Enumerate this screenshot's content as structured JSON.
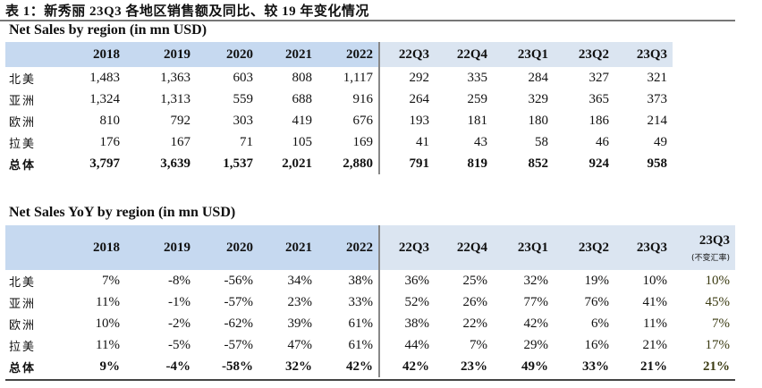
{
  "caption": "表 1：新秀丽 23Q3 各地区销售额及同比、较 19 年变化情况",
  "sales": {
    "title": "Net Sales by region (in mn USD)",
    "headers": [
      "",
      "2018",
      "2019",
      "2020",
      "2021",
      "2022",
      "22Q3",
      "22Q4",
      "23Q1",
      "23Q2",
      "23Q3"
    ],
    "rows": [
      [
        "北美",
        "1,483",
        "1,363",
        "603",
        "808",
        "1,117",
        "292",
        "335",
        "284",
        "327",
        "321"
      ],
      [
        "亚洲",
        "1,324",
        "1,313",
        "559",
        "688",
        "916",
        "264",
        "259",
        "329",
        "365",
        "373"
      ],
      [
        "欧洲",
        "810",
        "792",
        "303",
        "419",
        "676",
        "193",
        "181",
        "180",
        "186",
        "214"
      ],
      [
        "拉美",
        "176",
        "167",
        "71",
        "105",
        "169",
        "41",
        "43",
        "58",
        "46",
        "49"
      ],
      [
        "总体",
        "3,797",
        "3,639",
        "1,537",
        "2,021",
        "2,880",
        "791",
        "819",
        "852",
        "924",
        "958"
      ]
    ]
  },
  "yoy": {
    "title": "Net Sales YoY by region (in mn USD)",
    "headers": [
      "",
      "2018",
      "2019",
      "2020",
      "2021",
      "2022",
      "22Q3",
      "22Q4",
      "23Q1",
      "23Q2",
      "23Q3",
      "23Q3"
    ],
    "fx_note": "(不变汇率)",
    "rows": [
      [
        "北美",
        "7%",
        "-8%",
        "-56%",
        "34%",
        "38%",
        "36%",
        "25%",
        "32%",
        "19%",
        "10%",
        "10%"
      ],
      [
        "亚洲",
        "11%",
        "-1%",
        "-57%",
        "23%",
        "33%",
        "52%",
        "26%",
        "77%",
        "76%",
        "41%",
        "45%"
      ],
      [
        "欧洲",
        "10%",
        "-2%",
        "-62%",
        "39%",
        "61%",
        "38%",
        "22%",
        "42%",
        "6%",
        "11%",
        "7%"
      ],
      [
        "拉美",
        "11%",
        "-5%",
        "-57%",
        "47%",
        "61%",
        "44%",
        "7%",
        "29%",
        "16%",
        "21%",
        "17%"
      ],
      [
        "总体",
        "9%",
        "-4%",
        "-58%",
        "32%",
        "42%",
        "42%",
        "23%",
        "49%",
        "33%",
        "21%",
        "21%"
      ]
    ]
  },
  "colors": {
    "header_year": "#c6d9f0",
    "header_quarter": "#dbe5f1",
    "fx_text": "#3b3b12"
  }
}
